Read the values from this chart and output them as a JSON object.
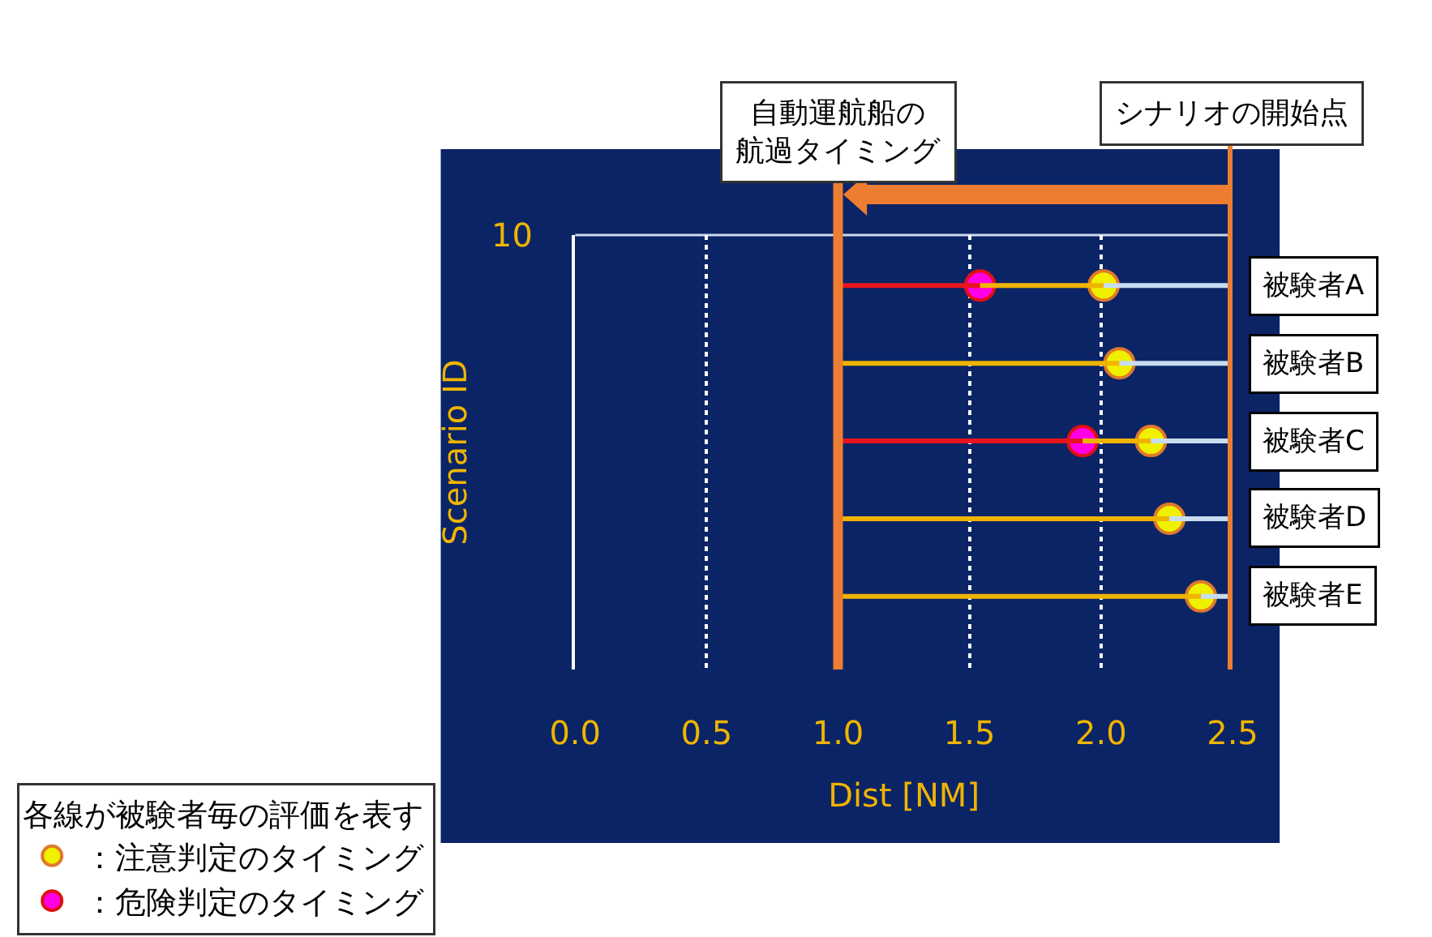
{
  "chart_data": {
    "type": "bar",
    "orientation": "horizontal",
    "categories": [
      "被験者A",
      "被験者B",
      "被験者C",
      "被験者D",
      "被験者E"
    ],
    "series": [
      {
        "color": "#e8141e",
        "base": [
          1.0,
          null,
          1.0,
          null,
          null
        ],
        "values": [
          0.54,
          null,
          0.93,
          null,
          null
        ]
      },
      {
        "color": "#f0b400",
        "base": [
          1.54,
          1.0,
          1.93,
          1.0,
          1.0
        ],
        "values": [
          0.47,
          1.07,
          0.26,
          1.26,
          1.38
        ]
      },
      {
        "color": "#c8dcf0",
        "base": [
          2.01,
          2.07,
          2.19,
          2.26,
          2.38
        ],
        "values": [
          0.49,
          0.43,
          0.31,
          0.24,
          0.12
        ]
      },
      {
        "type": "scatter",
        "name": "：注意判定のタイミング",
        "color": "#f0f000",
        "values": [
          2.01,
          2.07,
          2.19,
          2.26,
          2.38
        ]
      },
      {
        "type": "scatter",
        "name": "：危険判定のタイミング",
        "color": "#ff00e6",
        "values": [
          1.54,
          null,
          1.93,
          null,
          null
        ]
      }
    ],
    "xlim": [
      0,
      2.5
    ],
    "xticks": [
      {
        "value": 0,
        "label": "0.0"
      },
      0.5,
      {
        "value": 1,
        "label": "1.0"
      },
      1.5,
      {
        "value": 2,
        "label": "2.0"
      },
      2.5
    ],
    "xlabel": "Dist [NM]",
    "ylabel": "Scenario ID",
    "grid": "x",
    "marker": "circle",
    "legend": "bottom left",
    "legend_title": "各線が被験者毎の評価を表す",
    "ref_lines": [
      {
        "axis": "x",
        "value": 1.0,
        "label": "自動運航船の航過タイミング",
        "color": "#ed7d31"
      },
      {
        "axis": "x",
        "value": 2.5,
        "label": "シナリオの開始点",
        "color": "#ed7d31"
      }
    ],
    "annotations": [
      "10"
    ]
  }
}
